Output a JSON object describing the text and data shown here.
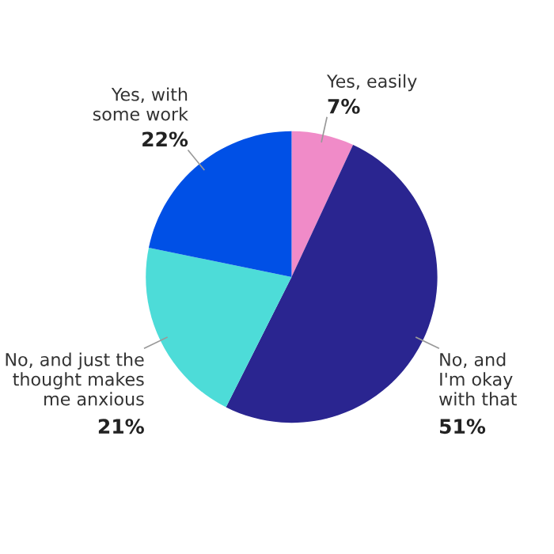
{
  "chart_data": {
    "type": "pie",
    "categories": [
      "Yes, easily",
      "No, and\nI'm okay\nwith that",
      "No, and just the\nthought makes\nme anxious",
      "Yes, with\nsome work"
    ],
    "values": [
      7,
      51,
      21,
      22
    ],
    "value_labels": [
      "7%",
      "51%",
      "21%",
      "22%"
    ],
    "colors": [
      "#f08bc8",
      "#2a2590",
      "#4ddcd8",
      "#0050e6"
    ]
  }
}
